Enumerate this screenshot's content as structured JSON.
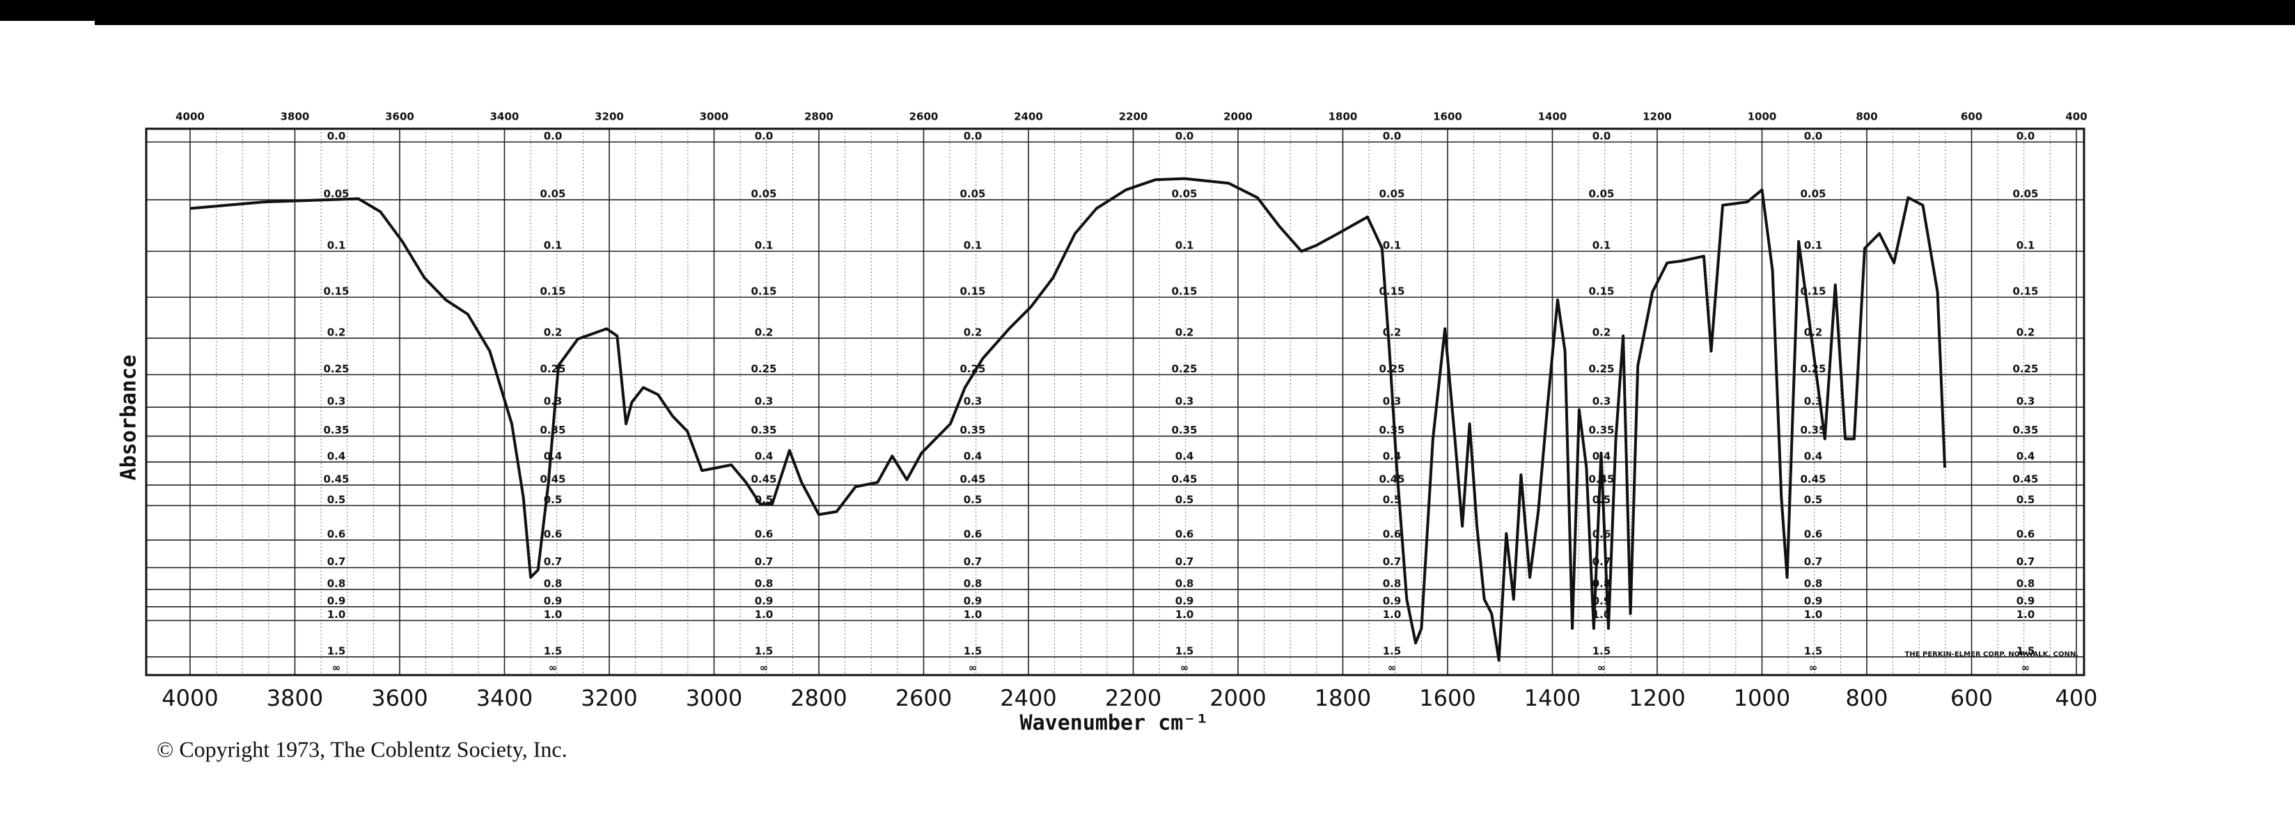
{
  "chart_data": {
    "type": "line",
    "y_label": "Absorbance",
    "x_label": "Wavenumber cm⁻¹",
    "copyright": "© Copyright 1973, The Coblentz Society, Inc.",
    "maker_note": "THE PERKIN-ELMER CORP. NORWALK, CONN.",
    "color": "#111111",
    "grid": true,
    "yscale": "absorbance",
    "xlim": [
      4000,
      400
    ],
    "xticks": [
      4000,
      3800,
      3600,
      3400,
      3200,
      3000,
      2800,
      2600,
      2400,
      2200,
      2000,
      1800,
      1600,
      1400,
      1200,
      1000,
      800,
      600,
      400
    ],
    "yticks": [
      {
        "value": 0,
        "label": "0.0"
      },
      0.05,
      0.1,
      0.15,
      0.2,
      0.25,
      0.3,
      0.35,
      0.4,
      0.45,
      0.5,
      0.6,
      0.7,
      0.8,
      0.9,
      {
        "value": 1,
        "label": "1.0"
      },
      1.5,
      {
        "value": null,
        "label": "∞"
      }
    ],
    "x": [
      4000,
      3860,
      3679,
      3637,
      3595,
      3553,
      3512,
      3470,
      3428,
      3386,
      3364,
      3350,
      3336,
      3316,
      3297,
      3260,
      3205,
      3185,
      3168,
      3157,
      3135,
      3107,
      3079,
      3051,
      3023,
      2995,
      2967,
      2939,
      2912,
      2889,
      2856,
      2833,
      2800,
      2766,
      2730,
      2688,
      2660,
      2632,
      2604,
      2549,
      2521,
      2487,
      2437,
      2395,
      2353,
      2311,
      2270,
      2214,
      2158,
      2102,
      2018,
      1963,
      1921,
      1879,
      1851,
      1809,
      1753,
      1725,
      1711,
      1697,
      1678,
      1661,
      1650,
      1628,
      1605,
      1586,
      1572,
      1558,
      1544,
      1530,
      1516,
      1502,
      1488,
      1474,
      1460,
      1443,
      1427,
      1410,
      1390,
      1376,
      1362,
      1349,
      1335,
      1321,
      1307,
      1293,
      1279,
      1265,
      1251,
      1237,
      1209,
      1181,
      1153,
      1111,
      1097,
      1075,
      1028,
      1000,
      980,
      963,
      952,
      930,
      902,
      880,
      860,
      841,
      824,
      804,
      776,
      748,
      721,
      693,
      665,
      651
    ],
    "values": [
      0.058,
      0.052,
      0.049,
      0.061,
      0.09,
      0.128,
      0.153,
      0.17,
      0.217,
      0.328,
      0.479,
      0.742,
      0.71,
      0.444,
      0.237,
      0.201,
      0.188,
      0.197,
      0.328,
      0.292,
      0.269,
      0.28,
      0.315,
      0.341,
      0.418,
      0.412,
      0.406,
      0.444,
      0.496,
      0.496,
      0.377,
      0.444,
      0.524,
      0.516,
      0.454,
      0.444,
      0.388,
      0.438,
      0.382,
      0.328,
      0.269,
      0.227,
      0.188,
      0.161,
      0.128,
      0.082,
      0.058,
      0.041,
      0.032,
      0.031,
      0.035,
      0.048,
      0.075,
      0.1,
      0.094,
      0.082,
      0.066,
      0.097,
      0.217,
      0.412,
      0.854,
      1.24,
      1.07,
      0.355,
      0.188,
      0.355,
      0.557,
      0.328,
      0.557,
      0.854,
      0.947,
      1.6,
      0.579,
      0.854,
      0.427,
      0.742,
      0.516,
      0.304,
      0.153,
      0.217,
      1.07,
      0.304,
      0.412,
      1.07,
      0.382,
      1.07,
      0.355,
      0.197,
      0.947,
      0.237,
      0.144,
      0.112,
      0.11,
      0.105,
      0.217,
      0.055,
      0.052,
      0.041,
      0.12,
      0.479,
      0.742,
      0.09,
      0.217,
      0.355,
      0.136,
      0.355,
      0.355,
      0.097,
      0.082,
      0.112,
      0.048,
      0.055,
      0.144,
      0.412
    ]
  }
}
